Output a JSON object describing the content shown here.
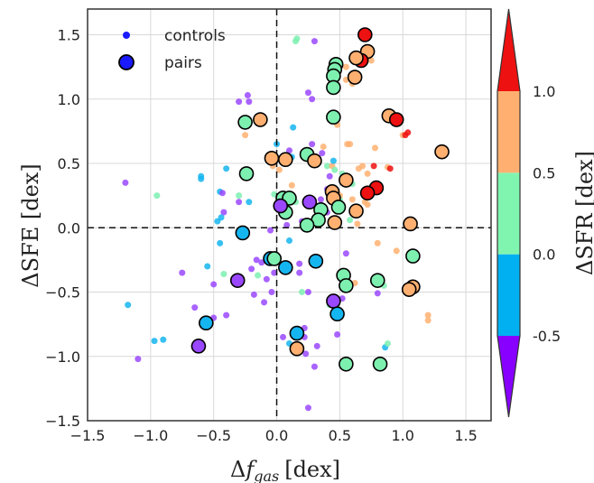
{
  "chart_data": {
    "type": "scatter",
    "xlabel": "Δf_gas [dex]",
    "xlabel_main": "Δ",
    "xlabel_var": "f",
    "xlabel_sub": "gas",
    "xlabel_unit": "[dex]",
    "ylabel": "ΔSFE [dex]",
    "xlim": [
      -1.5,
      1.7
    ],
    "ylim": [
      -1.5,
      1.7
    ],
    "xticks": [
      -1.5,
      -1.0,
      -0.5,
      0.0,
      0.5,
      1.0,
      1.5
    ],
    "yticks": [
      -1.5,
      -1.0,
      -0.5,
      0.0,
      0.5,
      1.0,
      1.5
    ],
    "xtick_labels": [
      "−1.5",
      "−1.0",
      "−0.5",
      "0.0",
      "0.5",
      "1.0",
      "1.5"
    ],
    "ytick_labels": [
      "−1.5",
      "−1.0",
      "−0.5",
      "0.0",
      "0.5",
      "1.0",
      "1.5"
    ],
    "grid": true,
    "reference_lines": {
      "x": 0,
      "y": 0
    },
    "legend": {
      "placement": "top-left",
      "entries": [
        {
          "label": "controls",
          "marker": "small-dot",
          "color": "#1a1aff"
        },
        {
          "label": "pairs",
          "marker": "large-circle-black-edge",
          "color": "#1a1aff"
        }
      ]
    },
    "colorbar": {
      "label": "ΔSFR [dex]",
      "bands": [
        {
          "from": -1.0,
          "to": -0.5,
          "color": "#8800ff"
        },
        {
          "from": -0.5,
          "to": 0.0,
          "color": "#00b0f0"
        },
        {
          "from": 0.0,
          "to": 0.5,
          "color": "#80f5b0"
        },
        {
          "from": 0.5,
          "to": 1.0,
          "color": "#ffb070"
        },
        {
          "from": 1.0,
          "to": 1.5,
          "color": "#ee1111"
        }
      ],
      "ticks": [
        -0.5,
        0.0,
        0.5,
        1.0
      ],
      "tick_labels": [
        "-0.5",
        "0.0",
        "0.5",
        "1.0"
      ],
      "extend": "both"
    },
    "series": [
      {
        "name": "controls",
        "marker": "small-dot",
        "points": [
          [
            -1.2,
            0.35,
            "violet"
          ],
          [
            -1.18,
            -0.6,
            "blue"
          ],
          [
            -1.1,
            -1.02,
            "violet"
          ],
          [
            -0.95,
            0.25,
            "green"
          ],
          [
            -0.9,
            -0.87,
            "blue"
          ],
          [
            -0.97,
            -0.88,
            "blue"
          ],
          [
            -0.75,
            -0.35,
            "violet"
          ],
          [
            -0.65,
            -0.62,
            "violet"
          ],
          [
            -0.6,
            0.4,
            "blue"
          ],
          [
            -0.6,
            0.38,
            "blue"
          ],
          [
            -0.55,
            -0.3,
            "blue"
          ],
          [
            -0.5,
            -0.7,
            "violet"
          ],
          [
            -0.5,
            -0.44,
            "violet"
          ],
          [
            -0.47,
            0.05,
            "blue"
          ],
          [
            -0.42,
            0.12,
            "violet"
          ],
          [
            -0.45,
            -0.12,
            "blue"
          ],
          [
            -0.44,
            0.08,
            "blue"
          ],
          [
            -0.42,
            -0.36,
            "green"
          ],
          [
            -0.4,
            0.46,
            "blue"
          ],
          [
            -0.45,
            0.28,
            "blue"
          ],
          [
            -0.43,
            0.27,
            "violet"
          ],
          [
            -0.4,
            -0.68,
            "violet"
          ],
          [
            -0.3,
            0.25,
            "green"
          ],
          [
            -0.25,
            0.72,
            "orange"
          ],
          [
            -0.23,
            1.03,
            "violet"
          ],
          [
            -0.22,
            0.2,
            "blue"
          ],
          [
            -0.2,
            -0.32,
            "violet"
          ],
          [
            -0.18,
            -0.52,
            "violet"
          ],
          [
            -0.16,
            -0.25,
            "violet"
          ],
          [
            -0.15,
            -0.37,
            "green"
          ],
          [
            -0.12,
            -0.27,
            "violet"
          ],
          [
            -0.1,
            -0.58,
            "violet"
          ],
          [
            -0.08,
            -0.4,
            "violet"
          ],
          [
            -0.05,
            -0.02,
            "violet"
          ],
          [
            -0.04,
            -0.5,
            "violet"
          ],
          [
            -0.03,
            0.48,
            "orange"
          ],
          [
            -0.02,
            0.26,
            "green"
          ],
          [
            -0.02,
            -0.35,
            "violet"
          ],
          [
            0.0,
            0.65,
            "blue"
          ],
          [
            0.02,
            0.45,
            "orange"
          ],
          [
            0.05,
            0.55,
            "violet"
          ],
          [
            0.08,
            0.02,
            "violet"
          ],
          [
            0.1,
            -0.1,
            "blue"
          ],
          [
            0.1,
            0.6,
            "violet"
          ],
          [
            0.1,
            -0.9,
            "blue"
          ],
          [
            0.12,
            0.55,
            "blue"
          ],
          [
            0.12,
            0.33,
            "orange"
          ],
          [
            0.13,
            0.78,
            "blue"
          ],
          [
            0.15,
            0.2,
            "green"
          ],
          [
            0.15,
            1.45,
            "green"
          ],
          [
            0.16,
            1.47,
            "green"
          ],
          [
            0.18,
            -0.35,
            "violet"
          ],
          [
            0.18,
            -0.28,
            "violet"
          ],
          [
            0.2,
            -0.5,
            "green"
          ],
          [
            0.2,
            0.05,
            "violet"
          ],
          [
            0.22,
            -0.78,
            "violet"
          ],
          [
            0.23,
            -0.98,
            "violet"
          ],
          [
            0.25,
            1.05,
            "violet"
          ],
          [
            0.25,
            -1.4,
            "violet"
          ],
          [
            0.27,
            0.2,
            "violet"
          ],
          [
            0.28,
            0.65,
            "violet"
          ],
          [
            0.3,
            0.08,
            "green"
          ],
          [
            0.3,
            -1.08,
            "violet"
          ],
          [
            0.32,
            -0.92,
            "violet"
          ],
          [
            0.35,
            0.12,
            "green"
          ],
          [
            0.36,
            0.58,
            "violet"
          ],
          [
            0.37,
            0.63,
            "orange"
          ],
          [
            0.4,
            0.48,
            "green"
          ],
          [
            0.4,
            0.3,
            "violet"
          ],
          [
            0.4,
            0.12,
            "violet"
          ],
          [
            0.42,
            -0.6,
            "green"
          ],
          [
            0.42,
            0.4,
            "violet"
          ],
          [
            0.44,
            0.48,
            "orange"
          ],
          [
            0.45,
            0.52,
            "blue"
          ],
          [
            0.46,
            0.45,
            "green"
          ],
          [
            0.48,
            0.8,
            "orange"
          ],
          [
            0.48,
            -0.83,
            "violet"
          ],
          [
            0.5,
            0.22,
            "green"
          ],
          [
            0.5,
            0.25,
            "orange"
          ],
          [
            0.52,
            0.42,
            "green"
          ],
          [
            0.52,
            -0.55,
            "violet"
          ],
          [
            0.55,
            -0.2,
            "violet"
          ],
          [
            0.55,
            1.25,
            "orange"
          ],
          [
            0.56,
            0.65,
            "orange"
          ],
          [
            0.58,
            0.06,
            "green"
          ],
          [
            0.58,
            0.65,
            "orange"
          ],
          [
            0.6,
            0.34,
            "green"
          ],
          [
            0.6,
            0.22,
            "orange"
          ],
          [
            0.62,
            -0.43,
            "orange"
          ],
          [
            0.64,
            0.03,
            "orange"
          ],
          [
            0.65,
            0.46,
            "orange"
          ],
          [
            0.68,
            0.48,
            "orange"
          ],
          [
            0.7,
            0.2,
            "orange"
          ],
          [
            0.72,
            0.18,
            "orange"
          ],
          [
            0.72,
            0.42,
            "orange"
          ],
          [
            0.75,
            1.3,
            "orange"
          ],
          [
            0.76,
            0.31,
            "orange"
          ],
          [
            0.77,
            0.48,
            "red"
          ],
          [
            0.78,
            0.62,
            "orange"
          ],
          [
            0.8,
            -0.12,
            "orange"
          ],
          [
            0.8,
            -0.51,
            "violet"
          ],
          [
            0.85,
            -0.45,
            "green"
          ],
          [
            0.86,
            -0.93,
            "blue"
          ],
          [
            0.88,
            -0.9,
            "green"
          ],
          [
            0.88,
            0.47,
            "orange"
          ],
          [
            0.9,
            0.46,
            "red"
          ],
          [
            0.95,
            -0.18,
            "orange"
          ],
          [
            1.0,
            0.72,
            "orange"
          ],
          [
            1.02,
            0.72,
            "red"
          ],
          [
            1.04,
            0.74,
            "red"
          ],
          [
            1.2,
            -0.68,
            "orange"
          ],
          [
            1.2,
            -0.72,
            "orange"
          ],
          [
            0.3,
            1.45,
            "violet"
          ],
          [
            0.28,
            1.0,
            "violet"
          ],
          [
            0.22,
            -0.85,
            "violet"
          ],
          [
            0.25,
            -0.5,
            "violet"
          ],
          [
            -0.22,
            0.98,
            "violet"
          ],
          [
            -0.3,
            0.98,
            "violet"
          ],
          [
            0.55,
            1.15,
            "orange"
          ],
          [
            0.6,
            1.12,
            "orange"
          ],
          [
            0.62,
            1.32,
            "orange"
          ],
          [
            0.35,
            0.22,
            "violet"
          ],
          [
            -0.3,
            0.2,
            "violet"
          ],
          [
            0.05,
            -0.85,
            "violet"
          ]
        ]
      },
      {
        "name": "pairs",
        "marker": "large-circle-black-edge",
        "points": [
          [
            0.7,
            1.5,
            "red"
          ],
          [
            0.72,
            1.37,
            "orange"
          ],
          [
            0.67,
            1.3,
            "red"
          ],
          [
            0.63,
            1.32,
            "orange"
          ],
          [
            0.47,
            1.27,
            "green"
          ],
          [
            0.46,
            1.23,
            "green"
          ],
          [
            0.45,
            1.18,
            "green"
          ],
          [
            0.45,
            1.09,
            "green"
          ],
          [
            0.62,
            1.17,
            "orange"
          ],
          [
            0.45,
            0.86,
            "green"
          ],
          [
            0.89,
            0.87,
            "orange"
          ],
          [
            0.95,
            0.84,
            "red"
          ],
          [
            -0.25,
            0.82,
            "green"
          ],
          [
            -0.13,
            0.84,
            "orange"
          ],
          [
            0.24,
            0.57,
            "green"
          ],
          [
            0.3,
            0.52,
            "orange"
          ],
          [
            -0.04,
            0.54,
            "orange"
          ],
          [
            0.07,
            0.53,
            "orange"
          ],
          [
            1.31,
            0.59,
            "orange"
          ],
          [
            -0.24,
            0.42,
            "green"
          ],
          [
            0.55,
            0.37,
            "orange"
          ],
          [
            0.79,
            0.31,
            "red"
          ],
          [
            0.72,
            0.27,
            "red"
          ],
          [
            0.44,
            0.28,
            "orange"
          ],
          [
            0.45,
            0.23,
            "orange"
          ],
          [
            0.49,
            0.16,
            "green"
          ],
          [
            0.63,
            0.13,
            "orange"
          ],
          [
            0.05,
            0.23,
            "green"
          ],
          [
            0.1,
            0.23,
            "green"
          ],
          [
            0.07,
            0.12,
            "green"
          ],
          [
            0.26,
            0.2,
            "violet"
          ],
          [
            0.35,
            0.14,
            "green"
          ],
          [
            0.03,
            0.17,
            "violet"
          ],
          [
            0.33,
            0.06,
            "green"
          ],
          [
            0.46,
            0.04,
            "orange"
          ],
          [
            0.24,
            0.02,
            "green"
          ],
          [
            1.06,
            0.03,
            "orange"
          ],
          [
            -0.27,
            -0.04,
            "blue"
          ],
          [
            -0.05,
            -0.24,
            "blue"
          ],
          [
            -0.02,
            -0.24,
            "green"
          ],
          [
            0.07,
            -0.31,
            "blue"
          ],
          [
            0.31,
            -0.26,
            "blue"
          ],
          [
            1.08,
            -0.22,
            "green"
          ],
          [
            0.53,
            -0.37,
            "green"
          ],
          [
            0.55,
            -0.45,
            "green"
          ],
          [
            0.8,
            -0.41,
            "green"
          ],
          [
            -0.31,
            -0.41,
            "violet"
          ],
          [
            1.08,
            -0.46,
            "orange"
          ],
          [
            1.05,
            -0.48,
            "orange"
          ],
          [
            0.45,
            -0.57,
            "violet"
          ],
          [
            0.48,
            -0.67,
            "blue"
          ],
          [
            -0.56,
            -0.74,
            "blue"
          ],
          [
            0.16,
            -0.82,
            "blue"
          ],
          [
            -0.62,
            -0.92,
            "violet"
          ],
          [
            0.16,
            -0.94,
            "orange"
          ],
          [
            0.55,
            -1.06,
            "green"
          ],
          [
            0.82,
            -1.06,
            "green"
          ]
        ]
      }
    ],
    "colors": {
      "violet": "#9a48ff",
      "blue": "#15b5f0",
      "green": "#7df0b0",
      "orange": "#ffb070",
      "red": "#ee1111",
      "legend_blue": "#1a1aff"
    }
  }
}
